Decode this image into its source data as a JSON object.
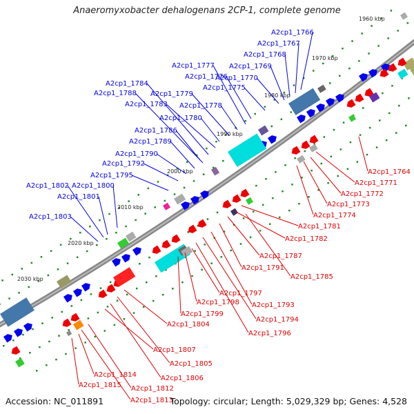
{
  "title": "Anaeromyxobacter dehalogenans 2CP-1, complete genome",
  "footer": {
    "accession": "Accession: NC_011891",
    "summary": "Topology: circular; Length: 5,029,329 bp; Genes: 4,528"
  },
  "ticks": [
    "1960 kbp",
    "1970 kbp",
    "1980 kbp",
    "1990 kbp",
    "2000 kbp",
    "2010 kbp",
    "2020 kbp",
    "2030 kbp"
  ],
  "labels_forward": [
    "A2cp1_1766",
    "A2cp1_1767",
    "A2cp1_1768",
    "A2cp1_1769",
    "A2cp1_1770",
    "A2cp1_1775",
    "A2cp1_1776",
    "A2cp1_1777",
    "A2cp1_1778",
    "A2cp1_1779",
    "A2cp1_1780",
    "A2cp1_1783",
    "A2cp1_1784",
    "A2cp1_1786",
    "A2cp1_1788",
    "A2cp1_1789",
    "A2cp1_1790",
    "A2cp1_1792",
    "A2cp1_1795",
    "A2cp1_1800",
    "A2cp1_1801",
    "A2cp1_1802",
    "A2cp1_1803"
  ],
  "labels_reverse": [
    "A2cp1_1764",
    "A2cp1_1771",
    "A2cp1_1772",
    "A2cp1_1773",
    "A2cp1_1774",
    "A2cp1_1781",
    "A2cp1_1782",
    "A2cp1_1785",
    "A2cp1_1787",
    "A2cp1_1791",
    "A2cp1_1793",
    "A2cp1_1794",
    "A2cp1_1796",
    "A2cp1_1797",
    "A2cp1_1798",
    "A2cp1_1799",
    "A2cp1_1804",
    "A2cp1_1805",
    "A2cp1_1806",
    "A2cp1_1807",
    "A2cp1_1812",
    "A2cp1_1813",
    "A2cp1_1814",
    "A2cp1_1815"
  ],
  "colors": {
    "forward_label": "#0000dd",
    "reverse_label": "#dd0000",
    "forward_gene": "#0000ee",
    "reverse_gene": "#ee0000",
    "rna_gene": "#00dddd",
    "pseudo_gene": "#4477aa",
    "backbone": "#888888",
    "tick_dot": "#228822"
  }
}
